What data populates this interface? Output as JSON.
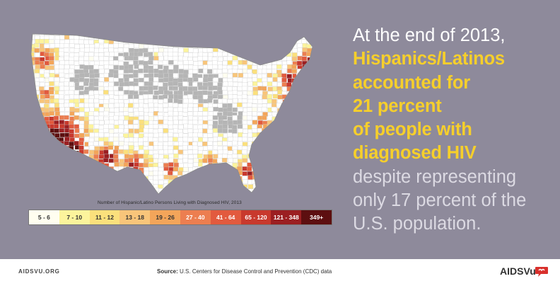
{
  "headline": {
    "line1": "At the end of 2013,",
    "highlight": [
      "Hispanics/Latinos",
      "accounted for",
      "21 percent",
      "of people with",
      "diagnosed HIV"
    ],
    "tail": [
      "despite representing",
      "only 17 percent of the",
      "U.S. population."
    ]
  },
  "legend": {
    "title": "Number of Hispanic/Latino Persons Living with Diagnosed HIV, 2013",
    "bins": [
      {
        "label": "5 - 6",
        "color": "#fffef0",
        "text": "#333333"
      },
      {
        "label": "7 - 10",
        "color": "#fcf49c",
        "text": "#333333"
      },
      {
        "label": "11 - 12",
        "color": "#fbe07c",
        "text": "#333333"
      },
      {
        "label": "13 - 18",
        "color": "#f8c57a",
        "text": "#333333"
      },
      {
        "label": "19 - 26",
        "color": "#f3a55a",
        "text": "#333333"
      },
      {
        "label": "27 - 40",
        "color": "#ec7e50",
        "text": "#ffffff"
      },
      {
        "label": "41 - 64",
        "color": "#e25a3e",
        "text": "#ffffff"
      },
      {
        "label": "65 - 120",
        "color": "#c8392d",
        "text": "#ffffff"
      },
      {
        "label": "121 - 348",
        "color": "#9b1f22",
        "text": "#ffffff"
      },
      {
        "label": "349+",
        "color": "#5d0f10",
        "text": "#ffffff"
      }
    ]
  },
  "map": {
    "no_data_color": "#ffffff",
    "suppressed_color": "#b5b5b5",
    "border_color": "#c9c9c9"
  },
  "footer": {
    "site": "AIDSVU.ORG",
    "source_label": "Source:",
    "source_text": "U.S. Centers for Disease Control and Prevention (CDC) data",
    "brand": "AIDSVu"
  },
  "colors": {
    "background": "#8e8a9b",
    "accent_yellow": "#f6cf2b",
    "brand_red": "#d9302c"
  }
}
